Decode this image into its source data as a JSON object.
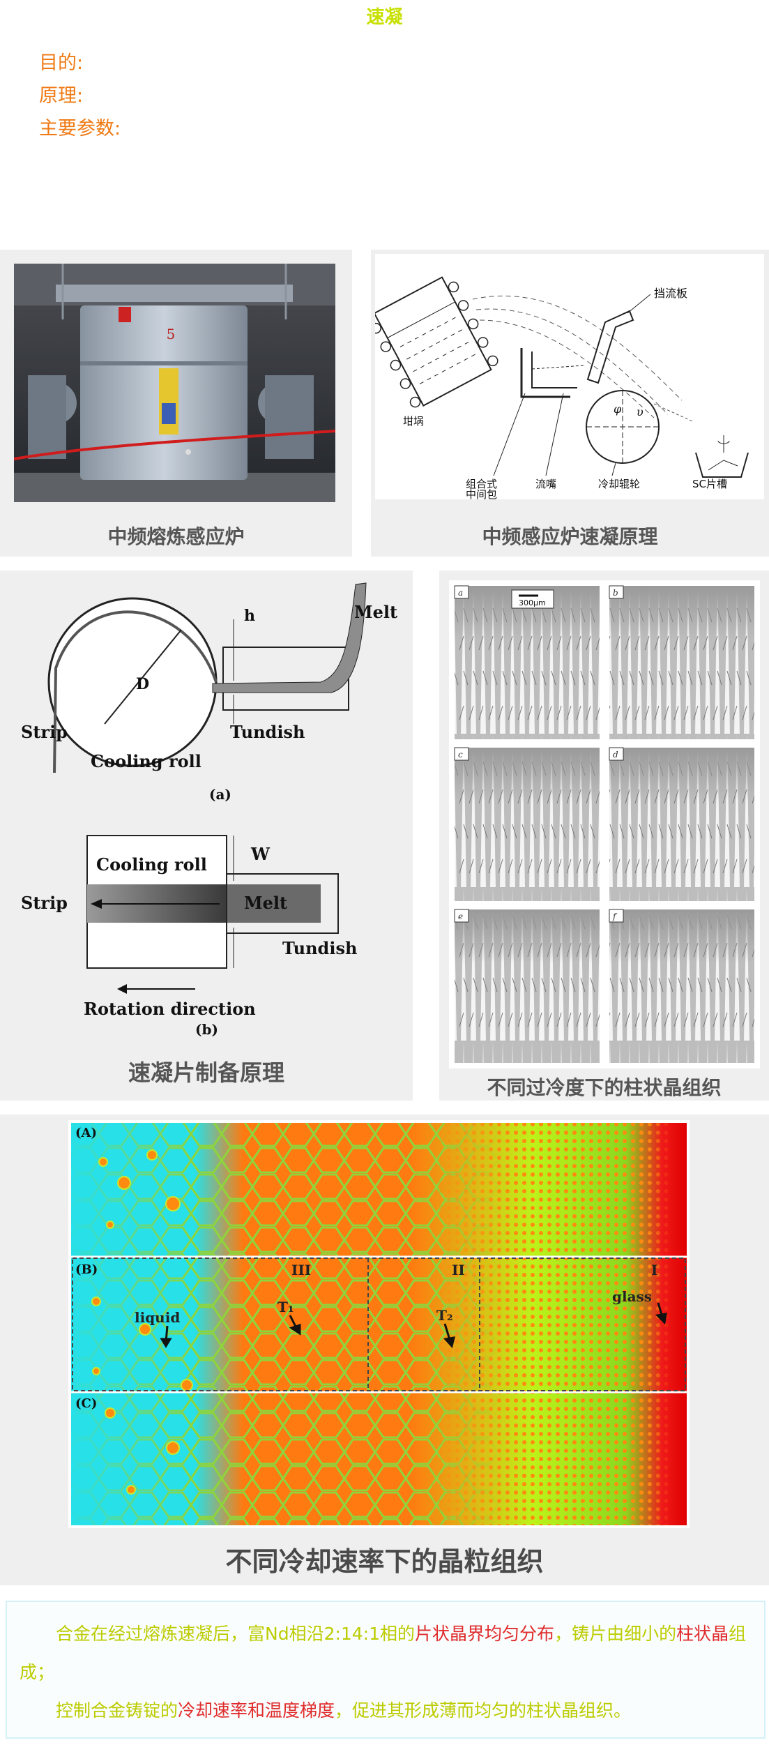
{
  "page": {
    "title": "速凝"
  },
  "questions": {
    "purpose": "目的:",
    "principle": "原理:",
    "params": "主要参数:"
  },
  "figures": {
    "furnace_photo_caption": "中频熔炼感应炉",
    "furnace_photo_plate": "5",
    "principle_caption": "中频感应炉速凝原理",
    "principle_labels": {
      "baffle": "挡流板",
      "crucible": "坩埚",
      "tundish": "组合式\n中间包",
      "nozzle": "流嘴",
      "roll": "冷却辊轮",
      "trough": "SC片槽",
      "phi": "φ",
      "v": "υ"
    },
    "schematic_caption": "速凝片制备原理",
    "schematic_labels": {
      "h": "h",
      "melt": "Melt",
      "D": "D",
      "strip": "Strip",
      "tundish": "Tundish",
      "cooling_roll": "Cooling roll",
      "a": "(a)",
      "W": "W",
      "rotation": "Rotation direction",
      "b": "(b)"
    },
    "dendrite_caption": "不同过冷度下的柱状晶组织",
    "dendrite_labels": [
      "a",
      "b",
      "c",
      "d",
      "e",
      "f"
    ],
    "dendrite_scale": "300μm",
    "grain_caption": "不同冷却速率下的晶粒组织",
    "grain_labels": {
      "A": "(A)",
      "B": "(B)",
      "C": "(C)",
      "III": "III",
      "II": "II",
      "I": "I",
      "liquid": "liquid",
      "T1": "T₁",
      "T2": "T₂",
      "glass": "glass"
    }
  },
  "notes": {
    "line1_a": "合金在经过熔炼速凝后，富Nd相沿2:14:1相的",
    "line1_b": "片状晶界均匀分布",
    "line1_c": "，铸片由细小的",
    "line1_d": "柱状晶",
    "line1_e": "组成；",
    "line2_a": "控制合金铸锭的",
    "line2_b": "冷却速率和温度梯度",
    "line2_c": "，促进其形成薄而均匀的柱状晶组织。"
  },
  "colors": {
    "title": "#c8e000",
    "label": "#f07a14",
    "highlight": "#e02b2b",
    "note_text": "#bccc00"
  }
}
